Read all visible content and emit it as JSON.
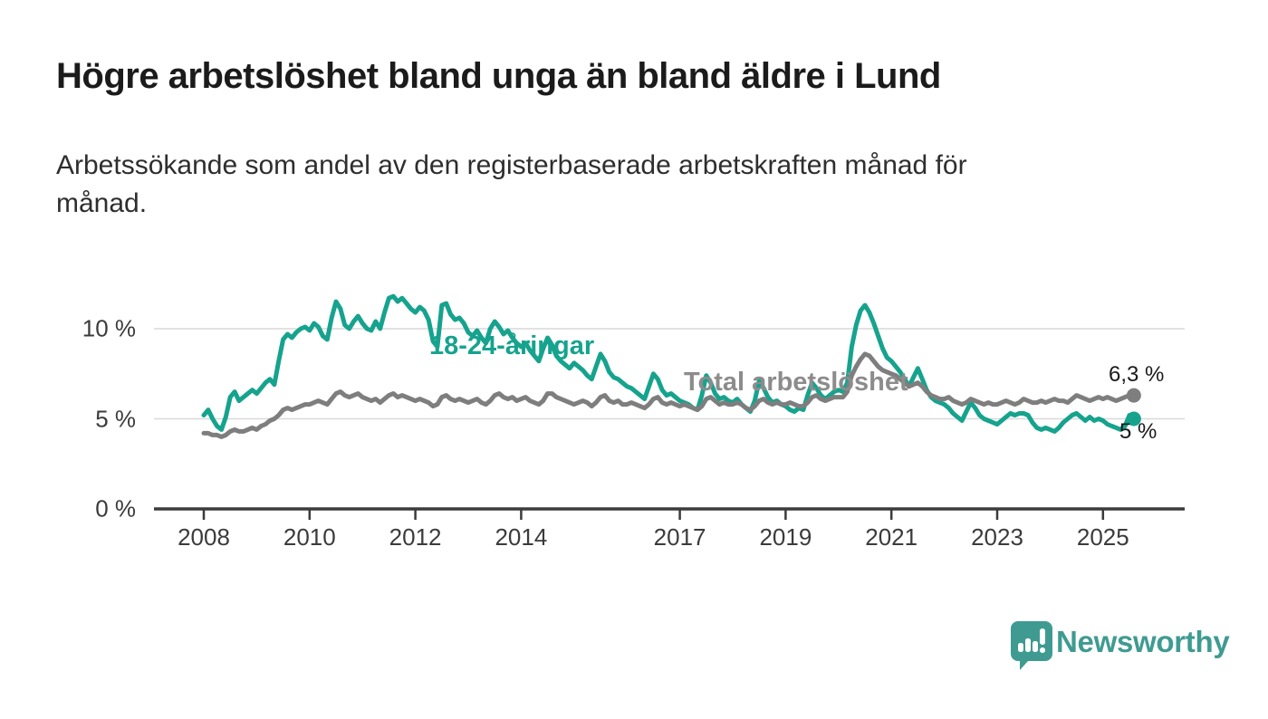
{
  "chart_data": {
    "type": "line",
    "title": "Högre arbetslöshet bland unga än bland äldre i Lund",
    "subtitle_lines": [
      "Arbetssökande som andel av den registerbaserade arbetskraften månad för",
      "månad."
    ],
    "unit": "%",
    "frequency": "monthly",
    "x_range": [
      "2008-01",
      "2025-08"
    ],
    "ylim": [
      0,
      12.2
    ],
    "grid": "horizontal",
    "x_ticks": [
      {
        "label": "2008",
        "year": 2008
      },
      {
        "label": "2010",
        "year": 2010
      },
      {
        "label": "2012",
        "year": 2012
      },
      {
        "label": "2014",
        "year": 2014
      },
      {
        "label": "2017",
        "year": 2017
      },
      {
        "label": "2019",
        "year": 2019
      },
      {
        "label": "2021",
        "year": 2021
      },
      {
        "label": "2023",
        "year": 2023
      },
      {
        "label": "2025",
        "year": 2025
      }
    ],
    "y_ticks": [
      {
        "label": "0 %",
        "value": 0
      },
      {
        "label": "5 %",
        "value": 5
      },
      {
        "label": "10 %",
        "value": 10
      }
    ],
    "series": [
      {
        "name": "18-24-åringar",
        "color": "#16a38e",
        "end_label": "5 %",
        "end_value": 5.0,
        "values": [
          5.2,
          5.5,
          5.0,
          4.6,
          4.4,
          5.1,
          6.2,
          6.5,
          6.0,
          6.2,
          6.4,
          6.6,
          6.4,
          6.7,
          7.0,
          7.2,
          6.9,
          8.2,
          9.4,
          9.7,
          9.5,
          9.8,
          10.0,
          10.1,
          9.9,
          10.3,
          10.1,
          9.6,
          9.4,
          10.6,
          11.5,
          11.1,
          10.2,
          10.0,
          10.4,
          10.7,
          10.3,
          10.0,
          9.9,
          10.4,
          10.0,
          10.9,
          11.7,
          11.8,
          11.5,
          11.7,
          11.4,
          11.1,
          10.9,
          11.2,
          11.0,
          10.5,
          9.3,
          9.0,
          11.3,
          11.4,
          10.8,
          10.5,
          10.6,
          10.3,
          9.8,
          9.6,
          9.9,
          9.5,
          9.2,
          10.0,
          10.4,
          10.1,
          9.7,
          9.9,
          9.5,
          9.2,
          9.0,
          9.2,
          8.8,
          8.5,
          8.2,
          8.9,
          9.5,
          9.1,
          8.5,
          8.2,
          8.0,
          7.8,
          8.1,
          7.9,
          7.7,
          7.4,
          7.2,
          7.9,
          8.6,
          8.2,
          7.6,
          7.3,
          7.2,
          7.0,
          6.8,
          6.7,
          6.5,
          6.3,
          6.1,
          6.8,
          7.5,
          7.2,
          6.6,
          6.3,
          6.4,
          6.2,
          6.0,
          5.9,
          5.8,
          5.6,
          5.5,
          6.3,
          7.4,
          7.0,
          6.4,
          6.1,
          6.2,
          6.0,
          5.9,
          6.1,
          5.8,
          5.6,
          5.4,
          6.0,
          7.1,
          6.7,
          6.2,
          5.9,
          6.0,
          5.8,
          5.7,
          5.5,
          5.4,
          5.6,
          5.5,
          6.3,
          7.0,
          6.7,
          6.3,
          6.1,
          6.3,
          6.5,
          6.6,
          6.5,
          7.0,
          9.0,
          10.2,
          11.0,
          11.3,
          10.9,
          10.3,
          9.6,
          8.9,
          8.4,
          8.2,
          7.9,
          7.6,
          7.2,
          6.8,
          7.3,
          7.8,
          7.2,
          6.6,
          6.2,
          6.0,
          5.9,
          5.8,
          5.6,
          5.3,
          5.1,
          4.9,
          5.4,
          5.9,
          5.6,
          5.2,
          5.0,
          4.9,
          4.8,
          4.7,
          4.9,
          5.1,
          5.3,
          5.2,
          5.3,
          5.3,
          5.2,
          4.8,
          4.5,
          4.4,
          4.5,
          4.4,
          4.3,
          4.5,
          4.8,
          5.0,
          5.2,
          5.3,
          5.1,
          4.9,
          5.1,
          4.9,
          5.0,
          4.9,
          4.7,
          4.6,
          4.5,
          4.4,
          4.6,
          5.2,
          5.0
        ]
      },
      {
        "name": "Total arbetslöshet",
        "color": "#7e7e7e",
        "end_label": "6,3 %",
        "end_value": 6.3,
        "values": [
          4.2,
          4.2,
          4.1,
          4.1,
          4.0,
          4.1,
          4.3,
          4.4,
          4.3,
          4.3,
          4.4,
          4.5,
          4.4,
          4.6,
          4.7,
          4.9,
          5.0,
          5.2,
          5.5,
          5.6,
          5.5,
          5.6,
          5.7,
          5.8,
          5.8,
          5.9,
          6.0,
          5.9,
          5.8,
          6.1,
          6.4,
          6.5,
          6.3,
          6.2,
          6.3,
          6.4,
          6.2,
          6.1,
          6.0,
          6.1,
          5.9,
          6.1,
          6.3,
          6.4,
          6.2,
          6.3,
          6.2,
          6.1,
          6.0,
          6.1,
          6.0,
          5.9,
          5.7,
          5.8,
          6.2,
          6.3,
          6.1,
          6.0,
          6.1,
          6.0,
          5.9,
          6.0,
          6.1,
          5.9,
          5.8,
          6.0,
          6.3,
          6.4,
          6.2,
          6.1,
          6.2,
          6.0,
          6.1,
          6.2,
          6.0,
          5.9,
          5.8,
          6.0,
          6.4,
          6.4,
          6.2,
          6.1,
          6.0,
          5.9,
          5.8,
          5.9,
          6.0,
          5.9,
          5.7,
          5.9,
          6.2,
          6.3,
          6.0,
          5.9,
          6.0,
          5.8,
          5.8,
          5.9,
          5.8,
          5.7,
          5.6,
          5.8,
          6.1,
          6.2,
          5.9,
          5.8,
          5.9,
          5.8,
          5.7,
          5.8,
          5.7,
          5.6,
          5.5,
          5.7,
          6.1,
          6.2,
          6.0,
          5.8,
          5.9,
          5.8,
          5.8,
          5.9,
          5.8,
          5.6,
          5.5,
          5.7,
          6.0,
          6.1,
          5.9,
          5.8,
          5.9,
          5.8,
          5.8,
          5.9,
          5.8,
          5.7,
          5.7,
          5.9,
          6.2,
          6.3,
          6.1,
          6.0,
          6.1,
          6.2,
          6.2,
          6.2,
          6.5,
          7.4,
          7.9,
          8.3,
          8.6,
          8.5,
          8.2,
          7.9,
          7.7,
          7.6,
          7.5,
          7.4,
          7.2,
          7.0,
          6.8,
          6.9,
          7.0,
          6.8,
          6.5,
          6.3,
          6.2,
          6.1,
          6.1,
          6.2,
          6.0,
          5.9,
          5.8,
          5.9,
          6.1,
          6.0,
          5.9,
          5.8,
          5.9,
          5.8,
          5.8,
          5.9,
          6.0,
          5.9,
          5.8,
          5.9,
          6.1,
          6.0,
          5.9,
          5.9,
          6.0,
          5.9,
          6.0,
          6.1,
          6.0,
          6.0,
          5.9,
          6.1,
          6.3,
          6.2,
          6.1,
          6.0,
          6.1,
          6.2,
          6.1,
          6.2,
          6.1,
          6.0,
          6.1,
          6.2,
          6.3,
          6.3
        ]
      }
    ],
    "colors": {
      "grid": "#d9d9d9",
      "axis": "#3b3b3b",
      "youth_line": "#16a38e",
      "total_line": "#7e7e7e",
      "end_label_text": "#1a1a1a"
    }
  },
  "footer": {
    "brand": "Newsworthy",
    "logo_icon": "bar-chart-speech-bubble-icon",
    "brand_color": "#3f9b91"
  }
}
